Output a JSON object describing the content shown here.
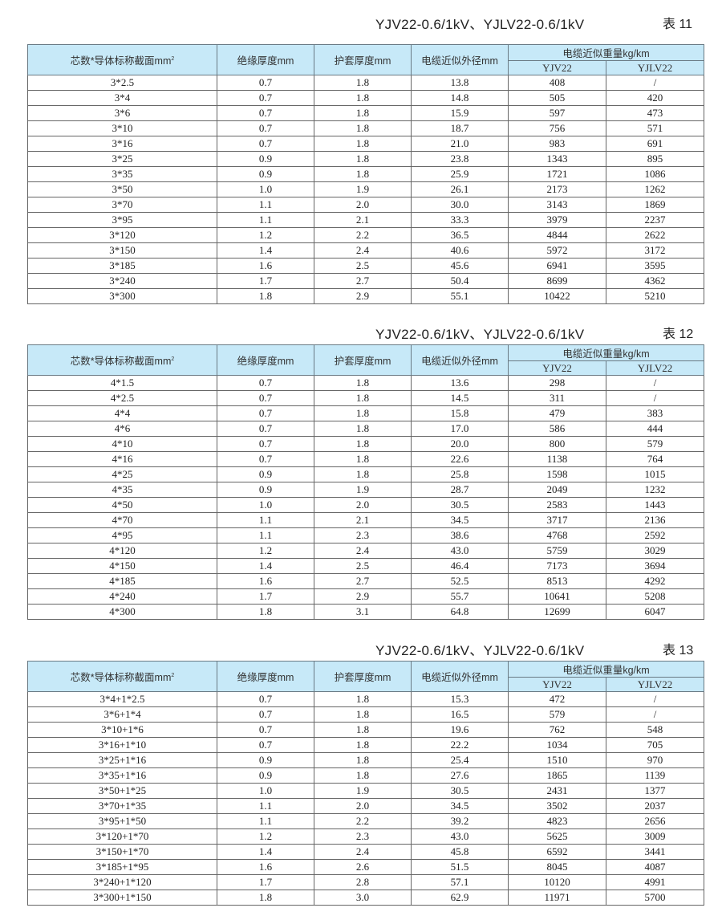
{
  "header": {
    "col1": "芯数*导体标称截面mm",
    "col1_sup": "2",
    "col2": "绝缘厚度mm",
    "col3": "护套厚度mm",
    "col4": "电缆近似外径mm",
    "col5": "电缆近似重量kg/km",
    "sub1": "YJV22",
    "sub2": "YJLV22"
  },
  "tables": [
    {
      "model": "YJV22-0.6/1kV、YJLV22-0.6/1kV",
      "number": "表 11",
      "rows": [
        [
          "3*2.5",
          "0.7",
          "1.8",
          "13.8",
          "408",
          "/"
        ],
        [
          "3*4",
          "0.7",
          "1.8",
          "14.8",
          "505",
          "420"
        ],
        [
          "3*6",
          "0.7",
          "1.8",
          "15.9",
          "597",
          "473"
        ],
        [
          "3*10",
          "0.7",
          "1.8",
          "18.7",
          "756",
          "571"
        ],
        [
          "3*16",
          "0.7",
          "1.8",
          "21.0",
          "983",
          "691"
        ],
        [
          "3*25",
          "0.9",
          "1.8",
          "23.8",
          "1343",
          "895"
        ],
        [
          "3*35",
          "0.9",
          "1.8",
          "25.9",
          "1721",
          "1086"
        ],
        [
          "3*50",
          "1.0",
          "1.9",
          "26.1",
          "2173",
          "1262"
        ],
        [
          "3*70",
          "1.1",
          "2.0",
          "30.0",
          "3143",
          "1869"
        ],
        [
          "3*95",
          "1.1",
          "2.1",
          "33.3",
          "3979",
          "2237"
        ],
        [
          "3*120",
          "1.2",
          "2.2",
          "36.5",
          "4844",
          "2622"
        ],
        [
          "3*150",
          "1.4",
          "2.4",
          "40.6",
          "5972",
          "3172"
        ],
        [
          "3*185",
          "1.6",
          "2.5",
          "45.6",
          "6941",
          "3595"
        ],
        [
          "3*240",
          "1.7",
          "2.7",
          "50.4",
          "8699",
          "4362"
        ],
        [
          "3*300",
          "1.8",
          "2.9",
          "55.1",
          "10422",
          "5210"
        ]
      ]
    },
    {
      "model": "YJV22-0.6/1kV、YJLV22-0.6/1kV",
      "number": "表 12",
      "rows": [
        [
          "4*1.5",
          "0.7",
          "1.8",
          "13.6",
          "298",
          "/"
        ],
        [
          "4*2.5",
          "0.7",
          "1.8",
          "14.5",
          "311",
          "/"
        ],
        [
          "4*4",
          "0.7",
          "1.8",
          "15.8",
          "479",
          "383"
        ],
        [
          "4*6",
          "0.7",
          "1.8",
          "17.0",
          "586",
          "444"
        ],
        [
          "4*10",
          "0.7",
          "1.8",
          "20.0",
          "800",
          "579"
        ],
        [
          "4*16",
          "0.7",
          "1.8",
          "22.6",
          "1138",
          "764"
        ],
        [
          "4*25",
          "0.9",
          "1.8",
          "25.8",
          "1598",
          "1015"
        ],
        [
          "4*35",
          "0.9",
          "1.9",
          "28.7",
          "2049",
          "1232"
        ],
        [
          "4*50",
          "1.0",
          "2.0",
          "30.5",
          "2583",
          "1443"
        ],
        [
          "4*70",
          "1.1",
          "2.1",
          "34.5",
          "3717",
          "2136"
        ],
        [
          "4*95",
          "1.1",
          "2.3",
          "38.6",
          "4768",
          "2592"
        ],
        [
          "4*120",
          "1.2",
          "2.4",
          "43.0",
          "5759",
          "3029"
        ],
        [
          "4*150",
          "1.4",
          "2.5",
          "46.4",
          "7173",
          "3694"
        ],
        [
          "4*185",
          "1.6",
          "2.7",
          "52.5",
          "8513",
          "4292"
        ],
        [
          "4*240",
          "1.7",
          "2.9",
          "55.7",
          "10641",
          "5208"
        ],
        [
          "4*300",
          "1.8",
          "3.1",
          "64.8",
          "12699",
          "6047"
        ]
      ]
    },
    {
      "model": "YJV22-0.6/1kV、YJLV22-0.6/1kV",
      "number": "表 13",
      "rows": [
        [
          "3*4+1*2.5",
          "0.7",
          "1.8",
          "15.3",
          "472",
          "/"
        ],
        [
          "3*6+1*4",
          "0.7",
          "1.8",
          "16.5",
          "579",
          "/"
        ],
        [
          "3*10+1*6",
          "0.7",
          "1.8",
          "19.6",
          "762",
          "548"
        ],
        [
          "3*16+1*10",
          "0.7",
          "1.8",
          "22.2",
          "1034",
          "705"
        ],
        [
          "3*25+1*16",
          "0.9",
          "1.8",
          "25.4",
          "1510",
          "970"
        ],
        [
          "3*35+1*16",
          "0.9",
          "1.8",
          "27.6",
          "1865",
          "1139"
        ],
        [
          "3*50+1*25",
          "1.0",
          "1.9",
          "30.5",
          "2431",
          "1377"
        ],
        [
          "3*70+1*35",
          "1.1",
          "2.0",
          "34.5",
          "3502",
          "2037"
        ],
        [
          "3*95+1*50",
          "1.1",
          "2.2",
          "39.2",
          "4823",
          "2656"
        ],
        [
          "3*120+1*70",
          "1.2",
          "2.3",
          "43.0",
          "5625",
          "3009"
        ],
        [
          "3*150+1*70",
          "1.4",
          "2.4",
          "45.8",
          "6592",
          "3441"
        ],
        [
          "3*185+1*95",
          "1.6",
          "2.6",
          "51.5",
          "8045",
          "4087"
        ],
        [
          "3*240+1*120",
          "1.7",
          "2.8",
          "57.1",
          "10120",
          "4991"
        ],
        [
          "3*300+1*150",
          "1.8",
          "3.0",
          "62.9",
          "11971",
          "5700"
        ]
      ]
    }
  ]
}
